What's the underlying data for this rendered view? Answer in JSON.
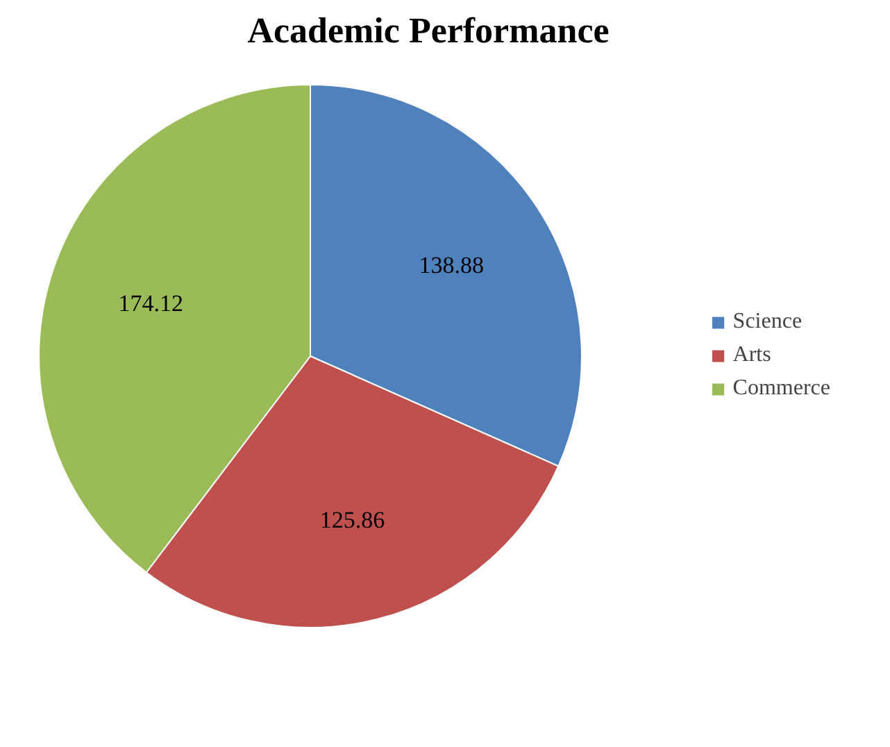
{
  "chart_data": {
    "type": "pie",
    "title": "Academic Performance",
    "categories": [
      "Science",
      "Arts",
      "Commerce"
    ],
    "values": [
      138.88,
      125.86,
      174.12
    ],
    "colors": [
      "#4f81bd",
      "#c0504d",
      "#9bbb59"
    ],
    "data_labels": true,
    "legend": "right"
  }
}
